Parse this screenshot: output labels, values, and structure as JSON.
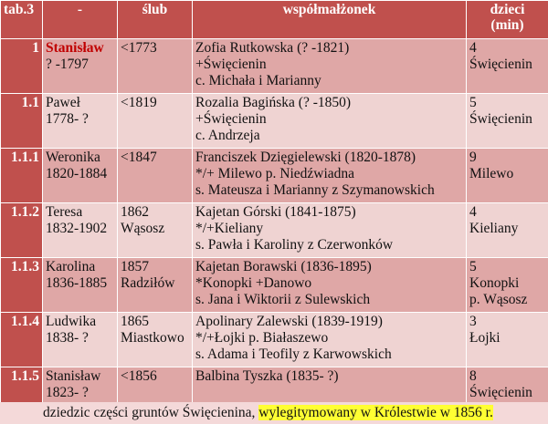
{
  "table": {
    "headers": {
      "tab": "tab.3",
      "name": "-",
      "slub": "ślub",
      "spouse": "współmałżonek",
      "children_line1": "dzieci",
      "children_line2": "(min)"
    },
    "rows": [
      {
        "id": "1",
        "name": [
          "Stanisław",
          "? -1797"
        ],
        "slub": [
          "<1773"
        ],
        "spouse": [
          "Zofia Rutkowska (? -1821)",
          "+Święcienin",
          "c. Michała i Marianny"
        ],
        "children": [
          "4",
          "Święcienin"
        ]
      },
      {
        "id": "1.1",
        "name": [
          "Paweł",
          "1778- ?"
        ],
        "slub": [
          "<1819"
        ],
        "spouse": [
          "Rozalia Bagińska (? -1850)",
          "+Święcienin",
          "c. Andrzeja"
        ],
        "children": [
          "5",
          "Święcienin"
        ]
      },
      {
        "id": "1.1.1",
        "name": [
          "Weronika",
          "1820-1884"
        ],
        "slub": [
          "<1847"
        ],
        "spouse": [
          "Franciszek Dzięgielewski (1820-1878)",
          "*/+ Milewo p. Niedźwiadna",
          "s. Mateusza i Marianny z Szymanowskich"
        ],
        "children": [
          "9",
          "Milewo"
        ]
      },
      {
        "id": "1.1.2",
        "name": [
          "Teresa",
          "1832-1902"
        ],
        "slub": [
          "1862",
          "Wąsosz"
        ],
        "spouse": [
          "Kajetan Górski (1841-1875)",
          "*/+Kieliany",
          "s. Pawła i Karoliny z Czerwonków"
        ],
        "children": [
          "4",
          "Kieliany"
        ]
      },
      {
        "id": "1.1.3",
        "name": [
          "Karolina",
          "1836-1885"
        ],
        "slub": [
          "1857",
          "Radziłów"
        ],
        "spouse": [
          "Kajetan Borawski (1836-1895)",
          "*Konopki +Danowo",
          "s. Jana i Wiktorii z Sulewskich"
        ],
        "children": [
          "5",
          "Konopki",
          "p. Wąsosz"
        ]
      },
      {
        "id": "1.1.4",
        "name": [
          "Ludwika",
          "1838- ?"
        ],
        "slub": [
          "1865",
          "Miastkowo"
        ],
        "spouse": [
          "Apolinary Zalewski (1839-1919)",
          "*/+Łojki p. Białaszewo",
          "s. Adama i Teofily z Karwowskich"
        ],
        "children": [
          "3",
          "Łojki"
        ]
      },
      {
        "id": "1.1.5",
        "name": [
          "Stanisław",
          "1823- ?"
        ],
        "slub": [
          "<1856"
        ],
        "spouse": [
          "Balbina Tyszka (1835- ?)"
        ],
        "children": [
          "8",
          "Święcienin"
        ]
      }
    ]
  },
  "footer": {
    "plain": "dziedzic części gruntów Święcienina,",
    "highlight": "wylegitymowany w Królestwie w 1856 r."
  },
  "colors": {
    "header_bg": "#c0504d",
    "row_dark": "#dfa7a6",
    "row_light": "#efd3d2",
    "highlight": "#ffff33",
    "name_red": "#c00000"
  }
}
